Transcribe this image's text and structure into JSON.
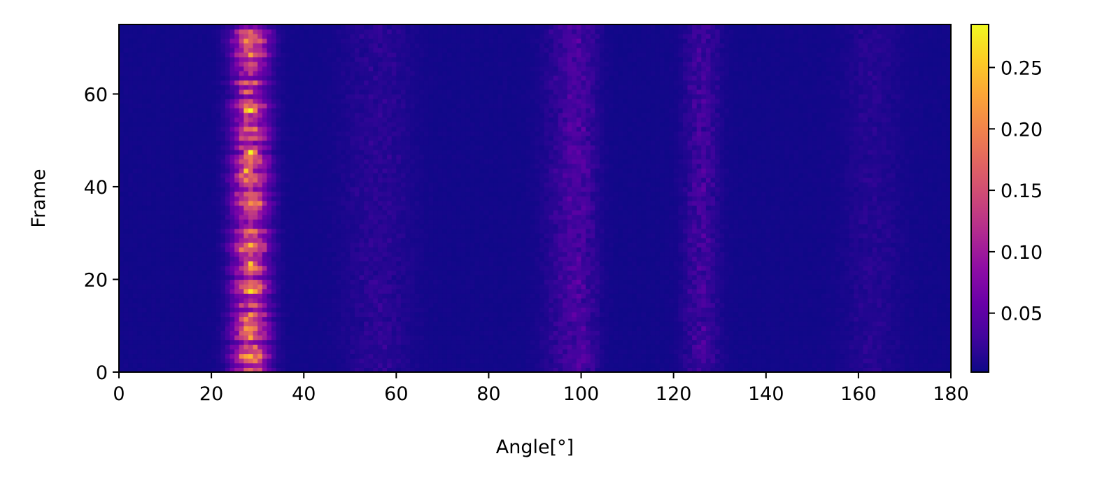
{
  "chart_data": {
    "type": "heatmap",
    "title": "",
    "xlabel": "Angle[°]",
    "ylabel": "Frame",
    "xlim": [
      0,
      180
    ],
    "ylim": [
      0,
      75
    ],
    "x_ticks": [
      0,
      20,
      40,
      60,
      80,
      100,
      120,
      140,
      160,
      180
    ],
    "y_ticks": [
      0,
      20,
      40,
      60
    ],
    "colormap": "plasma",
    "colorbar": {
      "range": [
        0.002,
        0.285
      ],
      "ticks": [
        0.05,
        0.1,
        0.15,
        0.2,
        0.25
      ],
      "tick_labels": [
        "0.05",
        "0.10",
        "0.15",
        "0.20",
        "0.25"
      ]
    },
    "grid": false,
    "peaks": [
      {
        "angle": 28.5,
        "width": 2.6,
        "strength": 0.17,
        "note": "dominant band"
      },
      {
        "angle": 100,
        "width": 2.5,
        "strength": 0.028
      },
      {
        "angle": 96,
        "width": 3.0,
        "strength": 0.018
      },
      {
        "angle": 126,
        "width": 2.5,
        "strength": 0.03
      },
      {
        "angle": 56,
        "width": 5.0,
        "strength": 0.015
      },
      {
        "angle": 163,
        "width": 4.0,
        "strength": 0.012
      }
    ],
    "frame_highlights": [
      {
        "frame": 56,
        "angle": 28.5,
        "value": 0.28
      },
      {
        "frame": 47,
        "angle": 28.5,
        "value": 0.26
      },
      {
        "frame": 17,
        "angle": 28.5,
        "value": 0.27
      },
      {
        "frame": 11,
        "angle": 27.5,
        "value": 0.26
      },
      {
        "frame": 60,
        "angle": 28.0,
        "value": 0.24
      },
      {
        "frame": 43,
        "angle": 28.0,
        "value": 0.22
      },
      {
        "frame": 23,
        "angle": 28.5,
        "value": 0.21
      },
      {
        "frame": 27,
        "angle": 28.5,
        "value": 0.2
      },
      {
        "frame": 2,
        "angle": 29.5,
        "value": 0.19
      },
      {
        "frame": 52,
        "angle": 28.5,
        "value": 0.2
      }
    ],
    "baseline": 0.004
  }
}
